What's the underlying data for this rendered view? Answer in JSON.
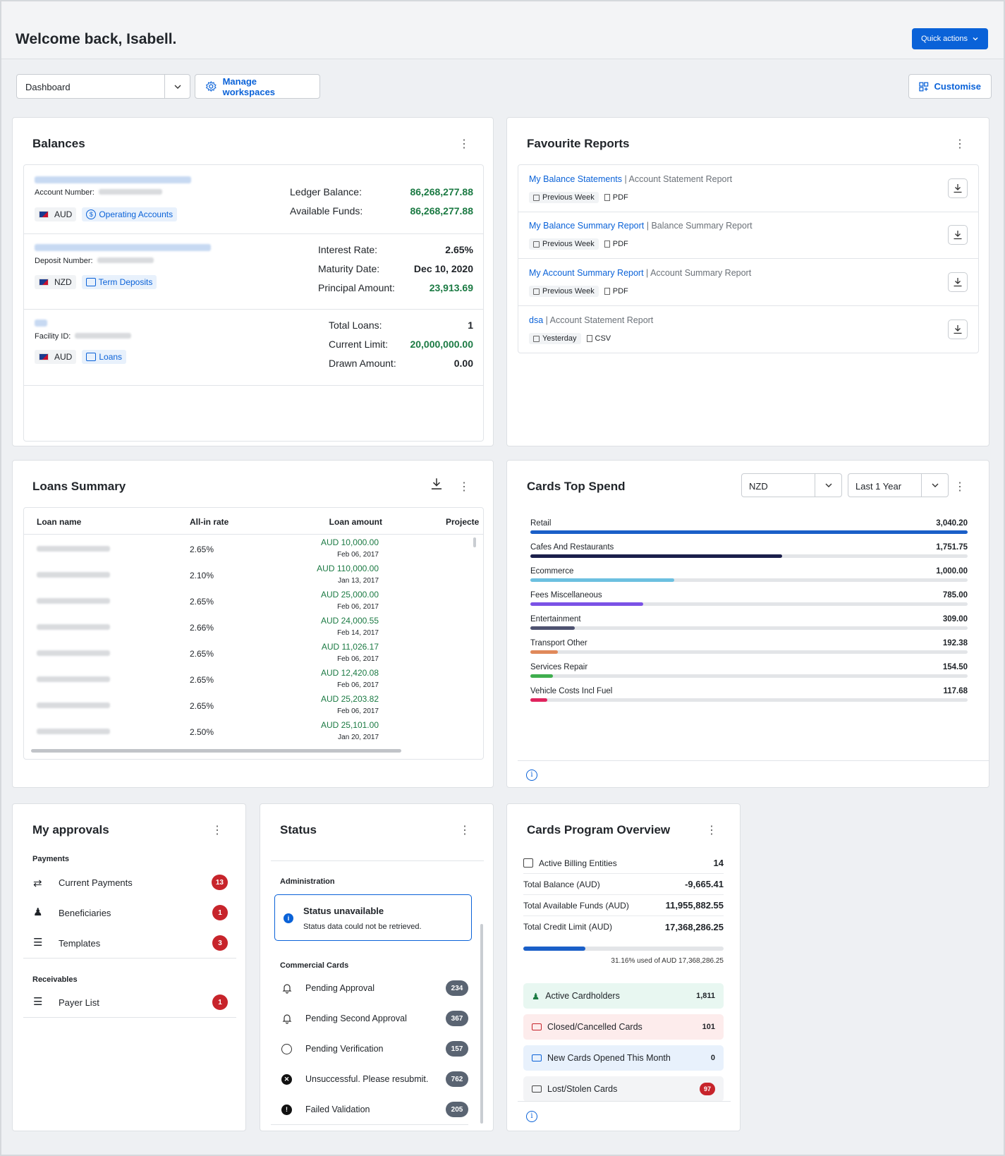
{
  "header": {
    "welcome": "Welcome back, Isabell.",
    "quick_actions": "Quick actions"
  },
  "toolbar": {
    "workspace_value": "Dashboard",
    "manage_workspaces": "Manage workspaces",
    "customise": "Customise"
  },
  "balances": {
    "title": "Balances",
    "accounts": [
      {
        "account_label": "Account Number:",
        "currency": "AUD",
        "type": "Operating Accounts",
        "fields": [
          {
            "label": "Ledger Balance:",
            "value": "86,268,277.88"
          },
          {
            "label": "Available Funds:",
            "value": "86,268,277.88"
          }
        ]
      },
      {
        "account_label": "Deposit Number:",
        "currency": "NZD",
        "type": "Term Deposits",
        "fields": [
          {
            "label": "Interest Rate:",
            "value": "2.65%"
          },
          {
            "label": "Maturity Date:",
            "value": "Dec 10, 2020"
          },
          {
            "label": "Principal Amount:",
            "value": "23,913.69"
          }
        ]
      },
      {
        "account_label": "Facility ID:",
        "currency": "AUD",
        "type": "Loans",
        "fields": [
          {
            "label": "Total Loans:",
            "value": "1"
          },
          {
            "label": "Current Limit:",
            "value": "20,000,000.00"
          },
          {
            "label": "Drawn Amount:",
            "value": "0.00"
          }
        ]
      }
    ]
  },
  "favourite_reports": {
    "title": "Favourite Reports",
    "items": [
      {
        "name": "My Balance Statements",
        "type": "Account Statement Report",
        "period": "Previous Week",
        "format": "PDF"
      },
      {
        "name": "My Balance Summary Report",
        "type": "Balance Summary Report",
        "period": "Previous Week",
        "format": "PDF"
      },
      {
        "name": "My Account Summary Report",
        "type": "Account Summary Report",
        "period": "Previous Week",
        "format": "PDF"
      },
      {
        "name": "dsa",
        "type": "Account Statement Report",
        "period": "Yesterday",
        "format": "CSV"
      }
    ]
  },
  "loans_summary": {
    "title": "Loans Summary",
    "columns": [
      "Loan name",
      "All-in rate",
      "Loan amount",
      "Projecte"
    ],
    "rows": [
      {
        "rate": "2.65%",
        "amount": "AUD 10,000.00",
        "date": "Feb 06, 2017"
      },
      {
        "rate": "2.10%",
        "amount": "AUD 110,000.00",
        "date": "Jan 13, 2017"
      },
      {
        "rate": "2.65%",
        "amount": "AUD 25,000.00",
        "date": "Feb 06, 2017"
      },
      {
        "rate": "2.66%",
        "amount": "AUD 24,000.55",
        "date": "Feb 14, 2017"
      },
      {
        "rate": "2.65%",
        "amount": "AUD 11,026.17",
        "date": "Feb 06, 2017"
      },
      {
        "rate": "2.65%",
        "amount": "AUD 12,420.08",
        "date": "Feb 06, 2017"
      },
      {
        "rate": "2.65%",
        "amount": "AUD 25,203.82",
        "date": "Feb 06, 2017"
      },
      {
        "rate": "2.50%",
        "amount": "AUD 25,101.00",
        "date": "Jan 20, 2017"
      }
    ]
  },
  "cards_top_spend": {
    "title": "Cards Top Spend",
    "currency": "NZD",
    "period": "Last 1 Year",
    "items": [
      {
        "label": "Retail",
        "value": "3,040.20",
        "amount": 3040.2,
        "color": "#1a5fc8"
      },
      {
        "label": "Cafes And Restaurants",
        "value": "1,751.75",
        "amount": 1751.75,
        "color": "#1b1f4b"
      },
      {
        "label": "Ecommerce",
        "value": "1,000.00",
        "amount": 1000.0,
        "color": "#6cc0e0"
      },
      {
        "label": "Fees Miscellaneous",
        "value": "785.00",
        "amount": 785.0,
        "color": "#7b52e6"
      },
      {
        "label": "Entertainment",
        "value": "309.00",
        "amount": 309.0,
        "color": "#4e5270"
      },
      {
        "label": "Transport Other",
        "value": "192.38",
        "amount": 192.38,
        "color": "#e0895a"
      },
      {
        "label": "Services Repair",
        "value": "154.50",
        "amount": 154.5,
        "color": "#3fae4e"
      },
      {
        "label": "Vehicle Costs Incl Fuel",
        "value": "117.68",
        "amount": 117.68,
        "color": "#e0245e"
      }
    ]
  },
  "approvals": {
    "title": "My approvals",
    "sections": [
      {
        "heading": "Payments",
        "items": [
          {
            "label": "Current Payments",
            "count": "13",
            "icon": "payments-icon"
          },
          {
            "label": "Beneficiaries",
            "count": "1",
            "icon": "people-icon"
          },
          {
            "label": "Templates",
            "count": "3",
            "icon": "list-icon"
          }
        ]
      },
      {
        "heading": "Receivables",
        "items": [
          {
            "label": "Payer List",
            "count": "1",
            "icon": "list-icon"
          }
        ]
      }
    ]
  },
  "status": {
    "title": "Status",
    "admin_heading": "Administration",
    "alert_title": "Status unavailable",
    "alert_text": "Status data could not be retrieved.",
    "cards_heading": "Commercial Cards",
    "items": [
      {
        "label": "Pending Approval",
        "count": "234",
        "icon": "bell-icon"
      },
      {
        "label": "Pending Second Approval",
        "count": "367",
        "icon": "bell-icon"
      },
      {
        "label": "Pending Verification",
        "count": "157",
        "icon": "clock-icon"
      },
      {
        "label": "Unsuccessful. Please resubmit.",
        "count": "762",
        "icon": "x-circle-icon"
      },
      {
        "label": "Failed Validation",
        "count": "205",
        "icon": "alert-circle-icon"
      }
    ]
  },
  "cards_program": {
    "title": "Cards Program Overview",
    "rows": [
      {
        "label": "Active Billing Entities",
        "value": "14"
      },
      {
        "label": "Total Balance (AUD)",
        "value": "-9,665.41"
      },
      {
        "label": "Total Available Funds (AUD)",
        "value": "11,955,882.55"
      },
      {
        "label": "Total Credit Limit (AUD)",
        "value": "17,368,286.25"
      }
    ],
    "used_percent": 31.16,
    "used_text": "31.16% used of AUD 17,368,286.25",
    "tiles": [
      {
        "label": "Active Cardholders",
        "value": "1,811",
        "bg": "#e8f7f1"
      },
      {
        "label": "Closed/Cancelled Cards",
        "value": "101",
        "bg": "#fdecec"
      },
      {
        "label": "New Cards Opened This Month",
        "value": "0",
        "bg": "#e8f1fc"
      },
      {
        "label": "Lost/Stolen Cards",
        "value": "97",
        "bg": "#f3f4f6"
      }
    ]
  }
}
